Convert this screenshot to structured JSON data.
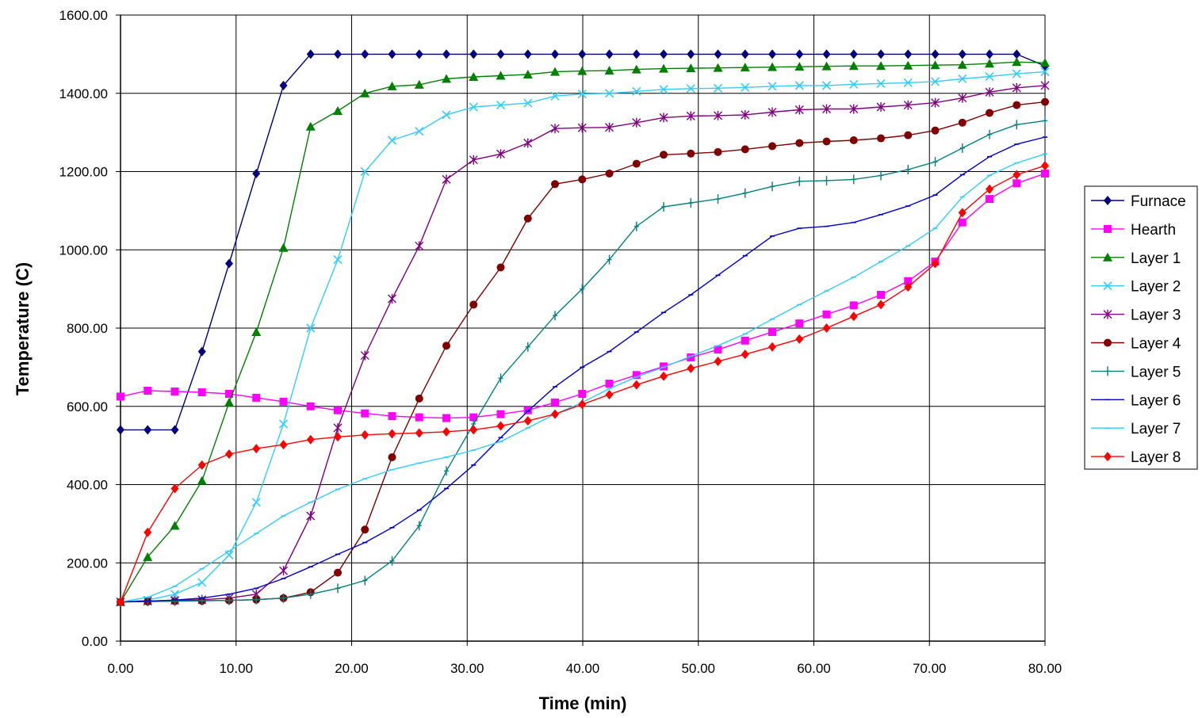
{
  "chart_data": {
    "type": "line",
    "title": "",
    "xlabel": "Time (min)",
    "ylabel": "Temperature (C)",
    "xlim": [
      0,
      80
    ],
    "ylim": [
      0,
      1600
    ],
    "x_ticks": [
      "0.00",
      "10.00",
      "20.00",
      "30.00",
      "40.00",
      "50.00",
      "60.00",
      "70.00",
      "80.00"
    ],
    "y_ticks": [
      "0.00",
      "200.00",
      "400.00",
      "600.00",
      "800.00",
      "1000.00",
      "1200.00",
      "1400.00",
      "1600.00"
    ],
    "grid": true,
    "legend_position": "right",
    "x": [
      0,
      2.35,
      4.7,
      7.05,
      9.4,
      11.75,
      14.1,
      16.45,
      18.8,
      21.15,
      23.5,
      25.85,
      28.2,
      30.55,
      32.9,
      35.25,
      37.6,
      39.95,
      42.3,
      44.65,
      47.0,
      49.35,
      51.7,
      54.05,
      56.4,
      58.75,
      61.1,
      63.45,
      65.8,
      68.15,
      70.5,
      72.85,
      75.2,
      77.55,
      80.0
    ],
    "series": [
      {
        "name": "Furnace",
        "color": "#00007f",
        "marker": "diamond",
        "values": [
          540,
          540,
          540,
          740,
          965,
          1195,
          1420,
          1500,
          1500,
          1500,
          1500,
          1500,
          1500,
          1500,
          1500,
          1500,
          1500,
          1500,
          1500,
          1500,
          1500,
          1500,
          1500,
          1500,
          1500,
          1500,
          1500,
          1500,
          1500,
          1500,
          1500,
          1500,
          1500,
          1500,
          1470
        ]
      },
      {
        "name": "Hearth",
        "color": "#ff00ff",
        "marker": "square",
        "values": [
          625,
          640,
          638,
          636,
          632,
          622,
          612,
          600,
          590,
          582,
          575,
          572,
          570,
          572,
          580,
          590,
          610,
          632,
          658,
          680,
          702,
          725,
          745,
          768,
          790,
          812,
          835,
          858,
          885,
          920,
          970,
          1070,
          1130,
          1170,
          1195
        ]
      },
      {
        "name": "Layer 1",
        "color": "#008000",
        "marker": "triangle",
        "values": [
          100,
          215,
          295,
          410,
          610,
          790,
          1005,
          1315,
          1355,
          1400,
          1418,
          1422,
          1437,
          1442,
          1445,
          1448,
          1455,
          1457,
          1458,
          1461,
          1463,
          1464,
          1465,
          1466,
          1467,
          1468,
          1469,
          1470,
          1470,
          1471,
          1472,
          1473,
          1476,
          1480,
          1478
        ]
      },
      {
        "name": "Layer 2",
        "color": "#33ccff",
        "marker": "x",
        "values": [
          100,
          105,
          120,
          150,
          220,
          355,
          555,
          800,
          975,
          1200,
          1280,
          1303,
          1345,
          1365,
          1370,
          1375,
          1393,
          1398,
          1400,
          1405,
          1410,
          1412,
          1413,
          1415,
          1418,
          1420,
          1420,
          1423,
          1425,
          1427,
          1430,
          1437,
          1443,
          1450,
          1455
        ]
      },
      {
        "name": "Layer 3",
        "color": "#800080",
        "marker": "star",
        "values": [
          100,
          102,
          104,
          106,
          110,
          120,
          180,
          320,
          545,
          730,
          875,
          1010,
          1180,
          1230,
          1245,
          1273,
          1310,
          1312,
          1313,
          1325,
          1338,
          1342,
          1343,
          1345,
          1352,
          1358,
          1360,
          1360,
          1365,
          1370,
          1376,
          1388,
          1403,
          1414,
          1420
        ]
      },
      {
        "name": "Layer 4",
        "color": "#800000",
        "marker": "circle",
        "values": [
          100,
          101,
          102,
          103,
          104,
          106,
          110,
          125,
          175,
          285,
          470,
          620,
          755,
          860,
          955,
          1080,
          1168,
          1180,
          1195,
          1220,
          1243,
          1246,
          1250,
          1257,
          1265,
          1273,
          1277,
          1280,
          1285,
          1293,
          1305,
          1325,
          1350,
          1370,
          1378
        ]
      },
      {
        "name": "Layer 5",
        "color": "#008080",
        "marker": "plus",
        "values": [
          100,
          101,
          102,
          103,
          104,
          106,
          110,
          120,
          135,
          155,
          205,
          295,
          435,
          555,
          672,
          752,
          832,
          900,
          975,
          1060,
          1110,
          1120,
          1130,
          1145,
          1162,
          1175,
          1177,
          1180,
          1190,
          1205,
          1225,
          1260,
          1295,
          1320,
          1330
        ]
      },
      {
        "name": "Layer 6",
        "color": "#0000cc",
        "marker": "dash",
        "values": [
          100,
          102,
          105,
          110,
          120,
          135,
          160,
          190,
          222,
          252,
          290,
          335,
          390,
          450,
          520,
          588,
          650,
          700,
          740,
          790,
          840,
          885,
          935,
          985,
          1035,
          1055,
          1060,
          1070,
          1090,
          1112,
          1140,
          1192,
          1238,
          1270,
          1288
        ]
      },
      {
        "name": "Layer 7",
        "color": "#33ccff",
        "marker": "dash",
        "values": [
          100,
          112,
          140,
          185,
          230,
          275,
          320,
          355,
          388,
          415,
          438,
          455,
          470,
          488,
          510,
          545,
          580,
          610,
          645,
          675,
          700,
          728,
          755,
          785,
          823,
          860,
          895,
          930,
          970,
          1010,
          1055,
          1135,
          1190,
          1222,
          1245
        ]
      },
      {
        "name": "Layer 8",
        "color": "#ff0000",
        "marker": "diamond",
        "values": [
          100,
          278,
          390,
          450,
          478,
          492,
          502,
          515,
          522,
          527,
          530,
          532,
          535,
          540,
          550,
          563,
          580,
          605,
          630,
          655,
          677,
          697,
          715,
          733,
          752,
          772,
          800,
          830,
          860,
          905,
          965,
          1095,
          1155,
          1192,
          1215
        ]
      }
    ]
  }
}
